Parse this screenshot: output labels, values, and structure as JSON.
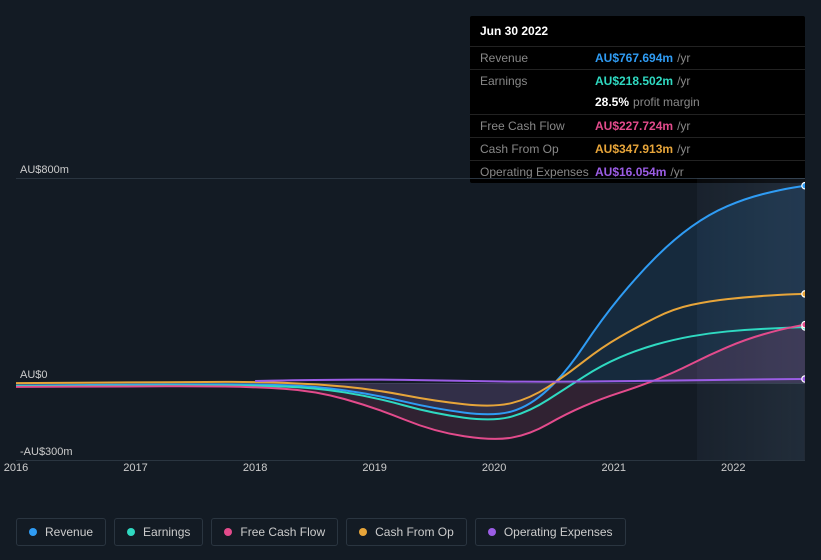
{
  "colors": {
    "revenue": "#2f9cf4",
    "earnings": "#2fd9c1",
    "fcf": "#e34b8c",
    "cfo": "#e7a53a",
    "opex": "#9b5de5",
    "bg": "#131b24",
    "grid": "#2a3540",
    "text": "#cccccc",
    "muted": "#888888"
  },
  "tooltip": {
    "date": "Jun 30 2022",
    "rows": [
      {
        "label": "Revenue",
        "value": "AU$767.694m",
        "suffix": "/yr",
        "colorKey": "revenue"
      },
      {
        "label": "Earnings",
        "value": "AU$218.502m",
        "suffix": "/yr",
        "colorKey": "earnings",
        "sub": {
          "value": "28.5%",
          "suffix": "profit margin"
        }
      },
      {
        "label": "Free Cash Flow",
        "value": "AU$227.724m",
        "suffix": "/yr",
        "colorKey": "fcf"
      },
      {
        "label": "Cash From Op",
        "value": "AU$347.913m",
        "suffix": "/yr",
        "colorKey": "cfo"
      },
      {
        "label": "Operating Expenses",
        "value": "AU$16.054m",
        "suffix": "/yr",
        "colorKey": "opex"
      }
    ]
  },
  "chart": {
    "y": {
      "min": -300,
      "max": 800,
      "ticks": [
        {
          "v": 800,
          "label": "AU$800m"
        },
        {
          "v": 0,
          "label": "AU$0"
        },
        {
          "v": -300,
          "label": "-AU$300m"
        }
      ]
    },
    "x": {
      "min": 2016,
      "max": 2022.6,
      "ticks": [
        2016,
        2017,
        2018,
        2019,
        2020,
        2021,
        2022
      ],
      "highlight_from": 2021.7
    },
    "series": [
      {
        "key": "revenue",
        "label": "Revenue",
        "colorKey": "revenue",
        "fill": true,
        "points": [
          [
            2016,
            -10
          ],
          [
            2016.5,
            -8
          ],
          [
            2017,
            -6
          ],
          [
            2017.5,
            -5
          ],
          [
            2018,
            -5
          ],
          [
            2018.5,
            -12
          ],
          [
            2019,
            -45
          ],
          [
            2019.5,
            -100
          ],
          [
            2020,
            -130
          ],
          [
            2020.3,
            -90
          ],
          [
            2020.6,
            40
          ],
          [
            2020.9,
            250
          ],
          [
            2021.2,
            420
          ],
          [
            2021.5,
            560
          ],
          [
            2021.8,
            660
          ],
          [
            2022.1,
            720
          ],
          [
            2022.4,
            755
          ],
          [
            2022.6,
            770
          ]
        ]
      },
      {
        "key": "cfo",
        "label": "Cash From Op",
        "colorKey": "cfo",
        "fill": false,
        "points": [
          [
            2016,
            0
          ],
          [
            2017,
            3
          ],
          [
            2017.5,
            4
          ],
          [
            2018,
            5
          ],
          [
            2018.5,
            -3
          ],
          [
            2019,
            -25
          ],
          [
            2019.5,
            -70
          ],
          [
            2020,
            -95
          ],
          [
            2020.3,
            -60
          ],
          [
            2020.6,
            30
          ],
          [
            2020.9,
            140
          ],
          [
            2021.2,
            220
          ],
          [
            2021.5,
            290
          ],
          [
            2021.8,
            320
          ],
          [
            2022.1,
            335
          ],
          [
            2022.4,
            345
          ],
          [
            2022.6,
            348
          ]
        ]
      },
      {
        "key": "earnings",
        "label": "Earnings",
        "colorKey": "earnings",
        "fill": false,
        "points": [
          [
            2016,
            -12
          ],
          [
            2017,
            -10
          ],
          [
            2017.5,
            -9
          ],
          [
            2018,
            -10
          ],
          [
            2018.5,
            -18
          ],
          [
            2019,
            -55
          ],
          [
            2019.5,
            -120
          ],
          [
            2020,
            -150
          ],
          [
            2020.3,
            -110
          ],
          [
            2020.6,
            -20
          ],
          [
            2020.9,
            70
          ],
          [
            2021.2,
            130
          ],
          [
            2021.5,
            170
          ],
          [
            2021.8,
            195
          ],
          [
            2022.1,
            208
          ],
          [
            2022.4,
            215
          ],
          [
            2022.6,
            219
          ]
        ]
      },
      {
        "key": "fcf",
        "label": "Free Cash Flow",
        "colorKey": "fcf",
        "fill": true,
        "points": [
          [
            2016,
            -15
          ],
          [
            2017,
            -13
          ],
          [
            2017.5,
            -12
          ],
          [
            2018,
            -15
          ],
          [
            2018.5,
            -30
          ],
          [
            2019,
            -95
          ],
          [
            2019.5,
            -190
          ],
          [
            2020,
            -225
          ],
          [
            2020.3,
            -200
          ],
          [
            2020.6,
            -120
          ],
          [
            2020.9,
            -60
          ],
          [
            2021.2,
            -15
          ],
          [
            2021.5,
            40
          ],
          [
            2021.8,
            110
          ],
          [
            2022.1,
            170
          ],
          [
            2022.4,
            210
          ],
          [
            2022.6,
            228
          ]
        ]
      },
      {
        "key": "opex",
        "label": "Operating Expenses",
        "colorKey": "opex",
        "fill": false,
        "points": [
          [
            2018,
            8
          ],
          [
            2018.3,
            11
          ],
          [
            2018.7,
            13
          ],
          [
            2019,
            14
          ],
          [
            2019.5,
            11
          ],
          [
            2020,
            6
          ],
          [
            2020.5,
            5
          ],
          [
            2021,
            7
          ],
          [
            2021.5,
            10
          ],
          [
            2022,
            13
          ],
          [
            2022.3,
            15
          ],
          [
            2022.6,
            16
          ]
        ]
      }
    ]
  },
  "legend": [
    {
      "label": "Revenue",
      "colorKey": "revenue"
    },
    {
      "label": "Earnings",
      "colorKey": "earnings"
    },
    {
      "label": "Free Cash Flow",
      "colorKey": "fcf"
    },
    {
      "label": "Cash From Op",
      "colorKey": "cfo"
    },
    {
      "label": "Operating Expenses",
      "colorKey": "opex"
    }
  ]
}
